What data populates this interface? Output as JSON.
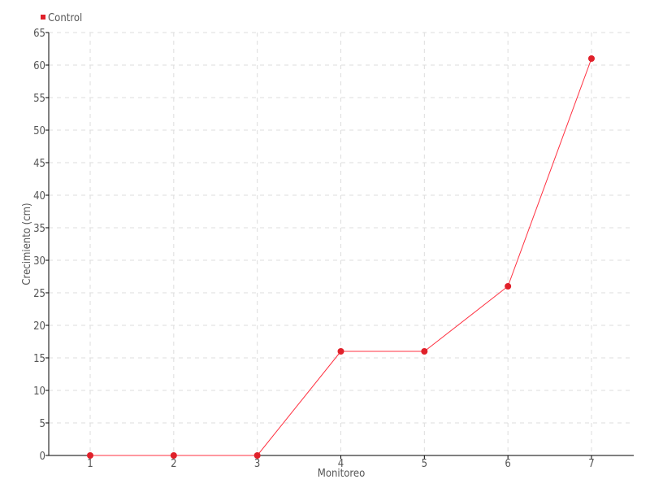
{
  "chart_data": {
    "type": "line",
    "title": "",
    "xlabel": "Monitoreo",
    "ylabel": "Crecimiento (cm)",
    "categories": [
      "1",
      "2",
      "3",
      "4",
      "5",
      "6",
      "7"
    ],
    "series": [
      {
        "name": "Control",
        "values": [
          0,
          0,
          0,
          16,
          16,
          26,
          61
        ],
        "color": "#e0202a"
      }
    ],
    "ylim": [
      0,
      65
    ],
    "yticks": [
      0,
      5,
      10,
      15,
      20,
      25,
      30,
      35,
      40,
      45,
      50,
      55,
      60,
      65
    ],
    "grid": true,
    "legend": "top-left"
  }
}
